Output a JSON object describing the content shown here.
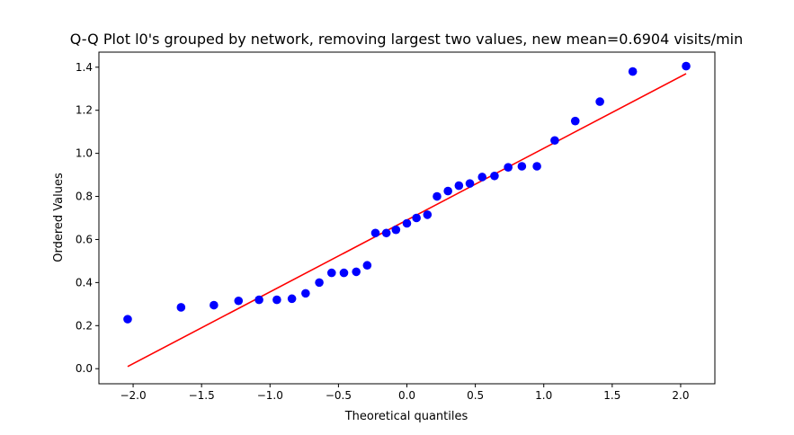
{
  "chart_data": {
    "type": "scatter",
    "title": "Q-Q Plot l0's grouped by network, removing largest two values, new mean=0.6904 visits/min",
    "xlabel": "Theoretical quantiles",
    "ylabel": "Ordered Values",
    "xlim": [
      -2.25,
      2.25
    ],
    "ylim": [
      -0.07,
      1.47
    ],
    "x_ticks": [
      -2.0,
      -1.5,
      -1.0,
      -0.5,
      0.0,
      0.5,
      1.0,
      1.5,
      2.0
    ],
    "x_tick_labels": [
      "−2.0",
      "−1.5",
      "−1.0",
      "−0.5",
      "0.0",
      "0.5",
      "1.0",
      "1.5",
      "2.0"
    ],
    "y_ticks": [
      0.0,
      0.2,
      0.4,
      0.6,
      0.8,
      1.0,
      1.2,
      1.4
    ],
    "y_tick_labels": [
      "0.0",
      "0.2",
      "0.4",
      "0.6",
      "0.8",
      "1.0",
      "1.2",
      "1.4"
    ],
    "grid": false,
    "legend": "none",
    "point_color": "#0000ff",
    "line_color": "#ff0000",
    "points": {
      "x": [
        -2.04,
        -1.65,
        -1.41,
        -1.23,
        -1.08,
        -0.95,
        -0.84,
        -0.74,
        -0.64,
        -0.55,
        -0.46,
        -0.37,
        -0.29,
        -0.23,
        -0.15,
        -0.08,
        0.0,
        0.07,
        0.15,
        0.22,
        0.3,
        0.38,
        0.46,
        0.55,
        0.64,
        0.74,
        0.84,
        0.95,
        1.08,
        1.23,
        1.41,
        1.65,
        2.04
      ],
      "y": [
        0.23,
        0.285,
        0.295,
        0.315,
        0.32,
        0.32,
        0.325,
        0.35,
        0.4,
        0.445,
        0.445,
        0.45,
        0.48,
        0.63,
        0.63,
        0.645,
        0.675,
        0.7,
        0.715,
        0.8,
        0.825,
        0.85,
        0.86,
        0.89,
        0.895,
        0.935,
        0.94,
        0.94,
        1.06,
        1.15,
        1.24,
        1.38,
        1.405
      ]
    },
    "fit_line": {
      "x": [
        -2.04,
        2.04
      ],
      "y": [
        0.01,
        1.37
      ]
    }
  }
}
